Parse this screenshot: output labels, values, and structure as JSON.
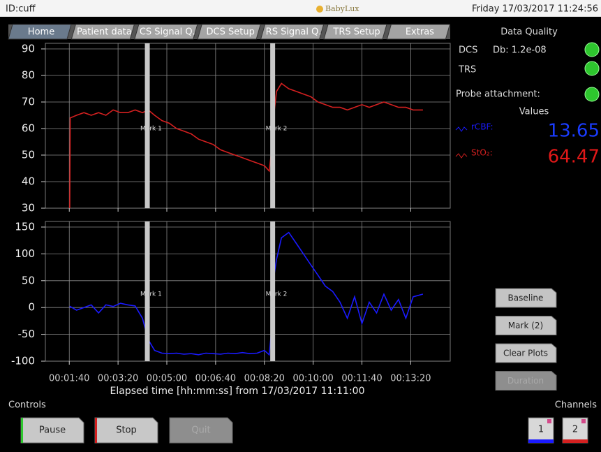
{
  "header": {
    "id": "ID:cuff",
    "logo": "BabyLux",
    "datetime": "Friday 17/03/2017  11:24:56"
  },
  "tabs": [
    "Home",
    "Patient data",
    "CS Signal Q.",
    "DCS Setup",
    "RS Signal Q.",
    "TRS Setup",
    "Extras"
  ],
  "panel": {
    "title": "Data Quality",
    "dcs": "DCS",
    "db": "Db: 1.2e-08",
    "trs": "TRS",
    "probe": "Probe attachment:",
    "values_title": "Values",
    "rcbf_label": "rCBF:",
    "rcbf_value": "13.65",
    "sto2_label": "StO₂:",
    "sto2_value": "64.47",
    "buttons": [
      "Baseline",
      "Mark (2)",
      "Clear Plots",
      "Duration"
    ]
  },
  "controls": {
    "title": "Controls",
    "buttons": [
      "Pause",
      "Stop",
      "Quit"
    ],
    "channels_title": "Channels",
    "channels": [
      "1",
      "2"
    ]
  },
  "chart_data": [
    {
      "type": "line",
      "grid": true,
      "x": [
        101,
        102,
        115,
        130,
        145,
        160,
        175,
        190,
        205,
        220,
        235,
        250,
        262,
        275,
        290,
        305,
        320,
        335,
        350,
        365,
        380,
        395,
        410,
        425,
        440,
        455,
        470,
        485,
        500,
        510,
        515,
        520,
        525,
        535,
        550,
        565,
        580,
        595,
        610,
        625,
        640,
        655,
        670,
        685,
        700,
        715,
        730,
        745,
        760,
        775,
        790,
        805,
        825
      ],
      "series": [
        {
          "name": "StO₂",
          "color": "#d42020",
          "values": [
            30,
            64,
            65,
            66,
            65,
            66,
            65,
            67,
            66,
            66,
            67,
            66,
            67,
            65,
            63,
            62,
            60,
            59,
            58,
            56,
            55,
            54,
            52,
            51,
            50,
            49,
            48,
            47,
            46,
            44,
            52,
            66,
            74,
            77,
            75,
            74,
            73,
            72,
            70,
            69,
            68,
            68,
            67,
            68,
            69,
            68,
            69,
            70,
            69,
            68,
            68,
            67,
            67
          ]
        }
      ],
      "xlim": [
        51,
        881
      ],
      "xticks": [
        {
          "value": 100,
          "label": "00:01:40"
        },
        {
          "value": 200,
          "label": "00:03:20"
        },
        {
          "value": 300,
          "label": "00:05:00"
        },
        {
          "value": 400,
          "label": "00:06:40"
        },
        {
          "value": 500,
          "label": "00:08:20"
        },
        {
          "value": 600,
          "label": "00:10:00"
        },
        {
          "value": 700,
          "label": "00:11:40"
        },
        {
          "value": 800,
          "label": "00:13:20"
        }
      ],
      "ylim": [
        30,
        90
      ],
      "yticks": [
        30,
        40,
        50,
        60,
        70,
        80,
        90
      ],
      "annotations": [
        {
          "x": 260,
          "text": "Mark 1"
        },
        {
          "x": 517,
          "text": "Mark 2"
        }
      ]
    },
    {
      "type": "line",
      "grid": true,
      "x": [
        101,
        102,
        115,
        130,
        145,
        160,
        175,
        190,
        205,
        220,
        235,
        250,
        262,
        275,
        290,
        305,
        320,
        335,
        350,
        365,
        380,
        395,
        410,
        425,
        440,
        455,
        470,
        485,
        500,
        510,
        515,
        520,
        525,
        535,
        550,
        565,
        580,
        595,
        610,
        625,
        640,
        655,
        670,
        685,
        700,
        715,
        730,
        745,
        760,
        775,
        790,
        805,
        825
      ],
      "series": [
        {
          "name": "rCBF",
          "color": "#1a1aff",
          "values": [
            0,
            2,
            -5,
            0,
            5,
            -10,
            5,
            2,
            8,
            5,
            3,
            -20,
            -60,
            -80,
            -85,
            -86,
            -85,
            -87,
            -86,
            -88,
            -85,
            -86,
            -87,
            -85,
            -86,
            -84,
            -86,
            -85,
            -80,
            -88,
            -40,
            60,
            90,
            130,
            140,
            120,
            100,
            80,
            60,
            40,
            30,
            10,
            -20,
            20,
            -30,
            10,
            -10,
            25,
            -5,
            15,
            -20,
            20,
            25
          ]
        }
      ],
      "xlim": [
        51,
        881
      ],
      "xticks": [
        {
          "value": 100,
          "label": "00:01:40"
        },
        {
          "value": 200,
          "label": "00:03:20"
        },
        {
          "value": 300,
          "label": "00:05:00"
        },
        {
          "value": 400,
          "label": "00:06:40"
        },
        {
          "value": 500,
          "label": "00:08:20"
        },
        {
          "value": 600,
          "label": "00:10:00"
        },
        {
          "value": 700,
          "label": "00:11:40"
        },
        {
          "value": 800,
          "label": "00:13:20"
        }
      ],
      "ylim": [
        -100,
        150
      ],
      "yticks": [
        -100,
        -50,
        0,
        50,
        100,
        150
      ],
      "x_label": "Elapsed time [hh:mm:ss] from 17/03/2017 11:11:00",
      "annotations": [
        {
          "x": 260,
          "text": "Mark 1"
        },
        {
          "x": 517,
          "text": "Mark 2"
        }
      ]
    }
  ]
}
